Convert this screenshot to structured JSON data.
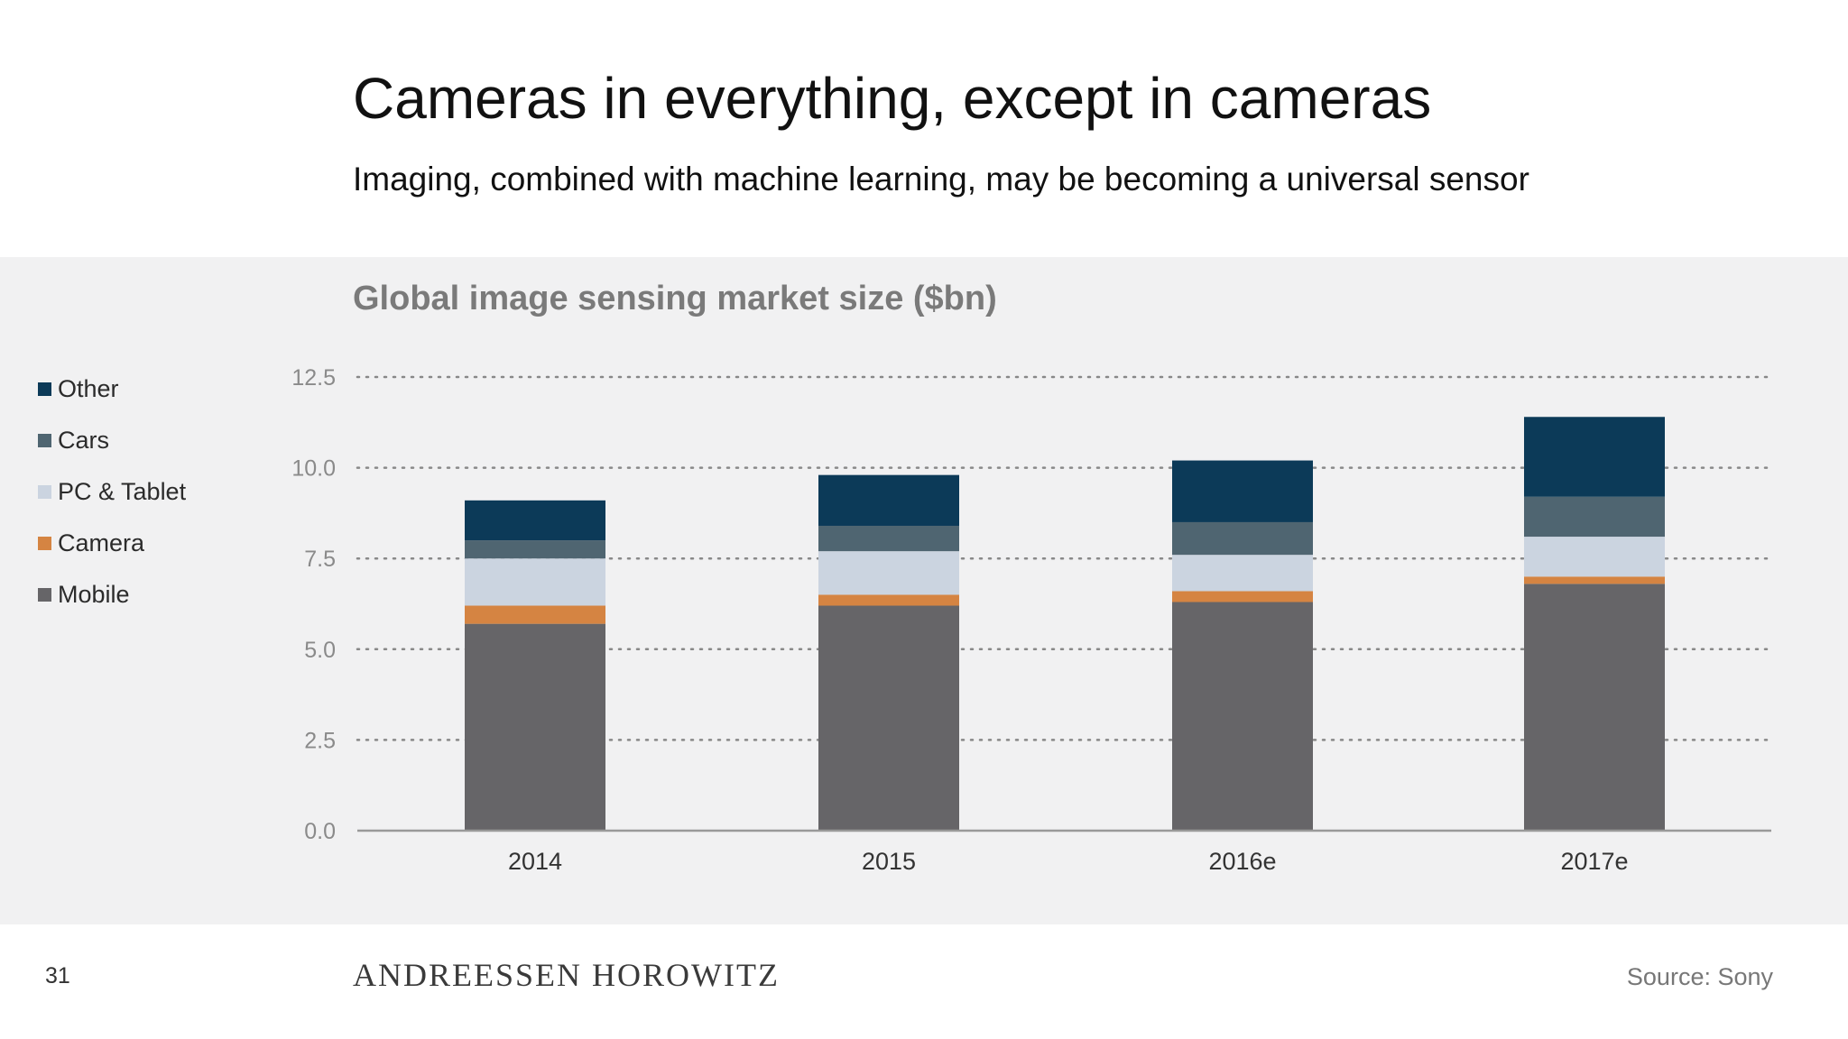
{
  "slide": {
    "title": "Cameras in everything, except in cameras",
    "subtitle": "Imaging, combined with machine learning, may be becoming a universal sensor",
    "page_number": "31",
    "brand": "ANDREESSEN HOROWITZ",
    "source": "Source: Sony"
  },
  "colors": {
    "Mobile": "#666568",
    "Camera": "#d58442",
    "PC & Tablet": "#cbd4e0",
    "Cars": "#4f6571",
    "Other": "#0c3a58",
    "panel_background": "#f1f1f2",
    "gridline": "#888888"
  },
  "legend": [
    {
      "label": "Other",
      "color": "#0c3a58"
    },
    {
      "label": "Cars",
      "color": "#4f6571"
    },
    {
      "label": "PC & Tablet",
      "color": "#cbd4e0"
    },
    {
      "label": "Camera",
      "color": "#d58442"
    },
    {
      "label": "Mobile",
      "color": "#666568"
    }
  ],
  "chart_data": {
    "type": "bar",
    "stacked": true,
    "title": "Global image sensing market size ($bn)",
    "xlabel": "",
    "ylabel": "",
    "categories": [
      "2014",
      "2015",
      "2016e",
      "2017e"
    ],
    "series": [
      {
        "name": "Mobile",
        "values": [
          5.7,
          6.2,
          6.3,
          6.8
        ]
      },
      {
        "name": "Camera",
        "values": [
          0.5,
          0.3,
          0.3,
          0.2
        ]
      },
      {
        "name": "PC & Tablet",
        "values": [
          1.3,
          1.2,
          1.0,
          1.1
        ]
      },
      {
        "name": "Cars",
        "values": [
          0.5,
          0.7,
          0.9,
          1.1
        ]
      },
      {
        "name": "Other",
        "values": [
          1.1,
          1.4,
          1.7,
          2.2
        ]
      }
    ],
    "ylim": [
      0,
      12.5
    ],
    "yticks": [
      "0.0",
      "2.5",
      "5.0",
      "7.5",
      "10.0",
      "12.5"
    ],
    "grid": true,
    "legend_position": "left"
  }
}
